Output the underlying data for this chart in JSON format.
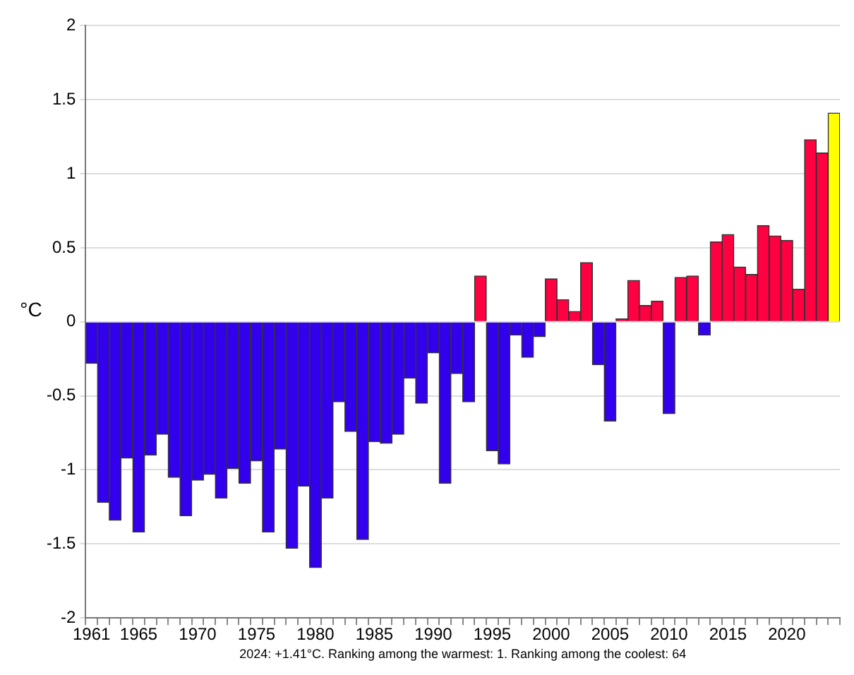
{
  "chart_data": {
    "type": "bar",
    "ylabel": "°C",
    "categories": [
      "1961",
      null,
      null,
      null,
      "1965",
      null,
      null,
      null,
      null,
      "1970",
      null,
      null,
      null,
      null,
      "1975",
      null,
      null,
      null,
      null,
      "1980",
      null,
      null,
      null,
      null,
      "1985",
      null,
      null,
      null,
      null,
      "1990",
      null,
      null,
      null,
      null,
      "1995",
      null,
      null,
      null,
      null,
      "2000",
      null,
      null,
      null,
      null,
      "2005",
      null,
      null,
      null,
      null,
      "2010",
      null,
      null,
      null,
      null,
      "2015",
      null,
      null,
      null,
      null,
      "2020",
      null,
      null,
      null,
      null
    ],
    "values": [
      -0.28,
      -1.22,
      -1.34,
      -0.92,
      -1.42,
      -0.9,
      -0.76,
      -1.05,
      -1.31,
      -1.07,
      -1.03,
      -1.19,
      -0.99,
      -1.09,
      -0.94,
      -1.42,
      -0.86,
      -1.53,
      -1.11,
      -1.66,
      -1.19,
      -0.54,
      -0.74,
      -1.47,
      -0.81,
      -0.82,
      -0.76,
      -0.38,
      -0.55,
      -0.21,
      -1.09,
      -0.35,
      -0.54,
      0.31,
      -0.87,
      -0.96,
      -0.09,
      -0.24,
      -0.1,
      0.29,
      0.15,
      0.07,
      0.4,
      -0.29,
      -0.67,
      0.02,
      0.28,
      0.11,
      0.14,
      -0.62,
      0.3,
      0.31,
      -0.09,
      0.54,
      0.59,
      0.37,
      0.32,
      0.65,
      0.58,
      0.55,
      0.22,
      1.23,
      1.14,
      1.41
    ],
    "colors": [
      "#3300ee",
      "#3300ee",
      "#3300ee",
      "#3300ee",
      "#3300ee",
      "#3300ee",
      "#3300ee",
      "#3300ee",
      "#3300ee",
      "#3300ee",
      "#3300ee",
      "#3300ee",
      "#3300ee",
      "#3300ee",
      "#3300ee",
      "#3300ee",
      "#3300ee",
      "#3300ee",
      "#3300ee",
      "#3300ee",
      "#3300ee",
      "#3300ee",
      "#3300ee",
      "#3300ee",
      "#3300ee",
      "#3300ee",
      "#3300ee",
      "#3300ee",
      "#3300ee",
      "#3300ee",
      "#3300ee",
      "#3300ee",
      "#3300ee",
      "#ff0040",
      "#3300ee",
      "#3300ee",
      "#3300ee",
      "#3300ee",
      "#3300ee",
      "#ff0040",
      "#ff0040",
      "#ff0040",
      "#ff0040",
      "#3300ee",
      "#3300ee",
      "#ff0040",
      "#ff0040",
      "#ff0040",
      "#ff0040",
      "#3300ee",
      "#ff0040",
      "#ff0040",
      "#3300ee",
      "#ff0040",
      "#ff0040",
      "#ff0040",
      "#ff0040",
      "#ff0040",
      "#ff0040",
      "#ff0040",
      "#ff0040",
      "#ff0040",
      "#ff0040",
      "#ffff00"
    ],
    "ylim": [
      -2,
      2
    ],
    "yticks": [
      -2,
      -1.5,
      -1,
      -0.5,
      0,
      0.5,
      1,
      1.5,
      2
    ],
    "grid": "y",
    "annotations": [
      "2024: +1.41°C. Ranking among the warmest: 1. Ranking among the coolest: 64"
    ]
  }
}
